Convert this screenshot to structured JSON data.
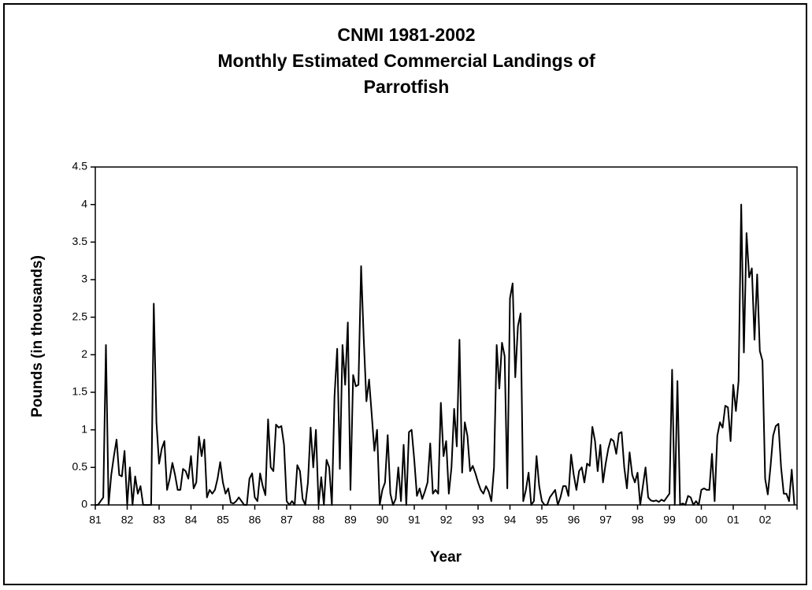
{
  "chart_data": {
    "type": "line",
    "title": [
      "CNMI 1981-2002",
      "Monthly Estimated Commercial Landings of",
      "Parrotfish"
    ],
    "x_label": "Year",
    "y_label": "Pounds (in thousands)",
    "ylim": [
      0,
      4.5
    ],
    "yticks": [
      0,
      0.5,
      1,
      1.5,
      2,
      2.5,
      3,
      3.5,
      4,
      4.5
    ],
    "categories": [
      "81",
      null,
      null,
      null,
      null,
      null,
      null,
      null,
      null,
      null,
      null,
      null,
      "82",
      null,
      null,
      null,
      null,
      null,
      null,
      null,
      null,
      null,
      null,
      null,
      "83",
      null,
      null,
      null,
      null,
      null,
      null,
      null,
      null,
      null,
      null,
      null,
      "84",
      null,
      null,
      null,
      null,
      null,
      null,
      null,
      null,
      null,
      null,
      null,
      "85",
      null,
      null,
      null,
      null,
      null,
      null,
      null,
      null,
      null,
      null,
      null,
      "86",
      null,
      null,
      null,
      null,
      null,
      null,
      null,
      null,
      null,
      null,
      null,
      "87",
      null,
      null,
      null,
      null,
      null,
      null,
      null,
      null,
      null,
      null,
      null,
      "88",
      null,
      null,
      null,
      null,
      null,
      null,
      null,
      null,
      null,
      null,
      null,
      "89",
      null,
      null,
      null,
      null,
      null,
      null,
      null,
      null,
      null,
      null,
      null,
      "90",
      null,
      null,
      null,
      null,
      null,
      null,
      null,
      null,
      null,
      null,
      null,
      "91",
      null,
      null,
      null,
      null,
      null,
      null,
      null,
      null,
      null,
      null,
      null,
      "92",
      null,
      null,
      null,
      null,
      null,
      null,
      null,
      null,
      null,
      null,
      null,
      "93",
      null,
      null,
      null,
      null,
      null,
      null,
      null,
      null,
      null,
      null,
      null,
      "94",
      null,
      null,
      null,
      null,
      null,
      null,
      null,
      null,
      null,
      null,
      null,
      "95",
      null,
      null,
      null,
      null,
      null,
      null,
      null,
      null,
      null,
      null,
      null,
      "96",
      null,
      null,
      null,
      null,
      null,
      null,
      null,
      null,
      null,
      null,
      null,
      "97",
      null,
      null,
      null,
      null,
      null,
      null,
      null,
      null,
      null,
      null,
      null,
      "98",
      null,
      null,
      null,
      null,
      null,
      null,
      null,
      null,
      null,
      null,
      null,
      "99",
      null,
      null,
      null,
      null,
      null,
      null,
      null,
      null,
      null,
      null,
      null,
      "00",
      null,
      null,
      null,
      null,
      null,
      null,
      null,
      null,
      null,
      null,
      null,
      "01",
      null,
      null,
      null,
      null,
      null,
      null,
      null,
      null,
      null,
      null,
      null,
      "02",
      null,
      null,
      null,
      null,
      null,
      null,
      null,
      null,
      null,
      null,
      null
    ],
    "series": [
      {
        "color": "#000000",
        "values": [
          0,
          0,
          0.05,
          0.1,
          2.13,
          0,
          0.4,
          0.65,
          0.87,
          0.4,
          0.38,
          0.72,
          0,
          0.5,
          0,
          0.38,
          0.15,
          0.25,
          0,
          0,
          0,
          0,
          2.68,
          1.1,
          0.55,
          0.75,
          0.85,
          0.2,
          0.35,
          0.56,
          0.4,
          0.2,
          0.2,
          0.48,
          0.45,
          0.35,
          0.65,
          0.22,
          0.3,
          0.91,
          0.65,
          0.87,
          0.1,
          0.2,
          0.15,
          0.2,
          0.35,
          0.57,
          0.3,
          0.15,
          0.22,
          0.03,
          0.02,
          0.05,
          0.1,
          0.05,
          0,
          0,
          0.35,
          0.42,
          0.1,
          0.05,
          0.42,
          0.25,
          0.13,
          1.14,
          0.5,
          0.45,
          1.07,
          1.03,
          1.05,
          0.8,
          0.05,
          0,
          0.05,
          0,
          0.53,
          0.45,
          0.08,
          0,
          0.3,
          1.03,
          0.5,
          1.0,
          0,
          0.37,
          0,
          0.6,
          0.5,
          0,
          1.45,
          2.08,
          0.48,
          2.13,
          1.6,
          2.43,
          0.2,
          1.73,
          1.58,
          1.6,
          3.18,
          2.2,
          1.38,
          1.67,
          1.2,
          0.72,
          1.0,
          0,
          0.2,
          0.3,
          0.93,
          0.15,
          0,
          0.08,
          0.5,
          0.05,
          0.8,
          0,
          0.97,
          1.0,
          0.6,
          0.12,
          0.22,
          0.08,
          0.18,
          0.3,
          0.82,
          0.15,
          0.2,
          0.15,
          1.36,
          0.65,
          0.85,
          0.15,
          0.5,
          1.28,
          0.78,
          2.2,
          0.43,
          1.1,
          0.92,
          0.45,
          0.52,
          0.42,
          0.3,
          0.2,
          0.15,
          0.25,
          0.18,
          0.05,
          0.5,
          2.13,
          1.55,
          2.16,
          1.98,
          0.22,
          2.75,
          2.95,
          1.7,
          2.38,
          2.55,
          0.05,
          0.2,
          0.43,
          0,
          0.05,
          0.65,
          0.25,
          0.05,
          0,
          0,
          0.1,
          0.15,
          0.2,
          0,
          0.1,
          0.25,
          0.25,
          0.12,
          0.67,
          0.4,
          0.2,
          0.45,
          0.5,
          0.3,
          0.55,
          0.52,
          1.04,
          0.85,
          0.45,
          0.8,
          0.3,
          0.55,
          0.75,
          0.88,
          0.85,
          0.68,
          0.95,
          0.97,
          0.5,
          0.22,
          0.7,
          0.4,
          0.3,
          0.43,
          0,
          0.25,
          0.5,
          0.1,
          0.06,
          0.05,
          0.06,
          0.04,
          0.07,
          0.05,
          0.1,
          0.15,
          1.8,
          0,
          1.65,
          0,
          0.02,
          0,
          0.12,
          0.1,
          0,
          0.05,
          0,
          0.2,
          0.22,
          0.2,
          0.2,
          0.68,
          0.05,
          0.92,
          1.1,
          1.03,
          1.32,
          1.3,
          0.85,
          1.6,
          1.25,
          1.65,
          4.0,
          2.03,
          3.62,
          3.03,
          3.15,
          2.2,
          3.07,
          2.05,
          1.92,
          0.35,
          0.14,
          0.5,
          0.92,
          1.05,
          1.08,
          0.5,
          0.15,
          0.15,
          0.05,
          0.47,
          0
        ]
      }
    ]
  }
}
